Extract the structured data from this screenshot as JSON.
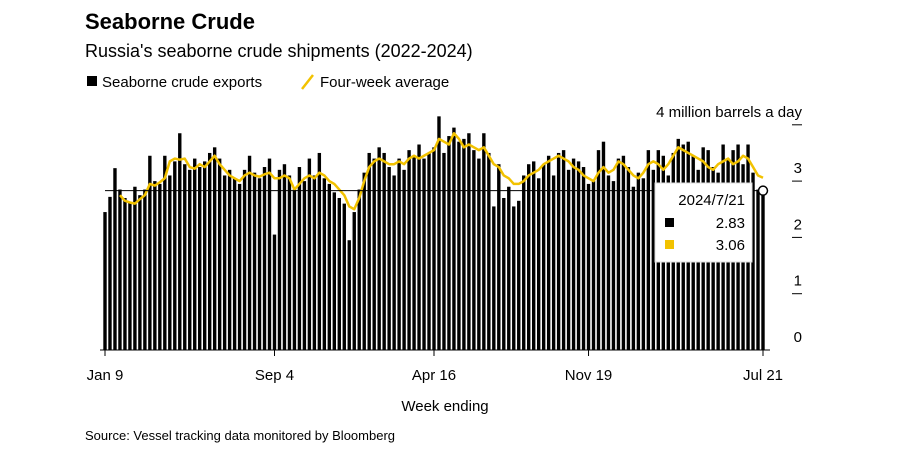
{
  "chart_data": {
    "type": "bar",
    "title": "Seaborne Crude",
    "subtitle": "Russia's seaborne crude shipments (2022-2024)",
    "x_label": "Week ending",
    "source": "Source: Vessel tracking data monitored by Bloomberg",
    "tooltip_title": "2024/7/21",
    "categories": [
      "Jan 9",
      null,
      null,
      null,
      null,
      null,
      null,
      null,
      null,
      null,
      null,
      null,
      null,
      null,
      null,
      null,
      null,
      null,
      null,
      null,
      null,
      null,
      null,
      null,
      null,
      null,
      null,
      null,
      null,
      null,
      null,
      null,
      null,
      null,
      "Sep 4",
      null,
      null,
      null,
      null,
      null,
      null,
      null,
      null,
      null,
      null,
      null,
      null,
      null,
      null,
      null,
      null,
      null,
      null,
      null,
      null,
      null,
      null,
      null,
      null,
      null,
      null,
      null,
      null,
      null,
      null,
      null,
      "Apr 16",
      null,
      null,
      null,
      null,
      null,
      null,
      null,
      null,
      null,
      null,
      null,
      null,
      null,
      null,
      null,
      null,
      null,
      null,
      null,
      null,
      null,
      null,
      null,
      null,
      null,
      null,
      null,
      null,
      null,
      null,
      "Nov 19",
      null,
      null,
      null,
      null,
      null,
      null,
      null,
      null,
      null,
      null,
      null,
      null,
      null,
      null,
      null,
      null,
      null,
      null,
      null,
      null,
      null,
      null,
      null,
      null,
      null,
      null,
      null,
      null,
      null,
      null,
      null,
      null,
      null,
      null,
      "Jul 21"
    ],
    "series": [
      {
        "name": "Seaborne crude exports",
        "type": "bar",
        "color": "#000000",
        "values": [
          2.45,
          2.72,
          3.23,
          2.85,
          2.7,
          2.62,
          2.9,
          2.75,
          2.85,
          3.45,
          3.0,
          2.95,
          3.45,
          3.1,
          3.35,
          3.85,
          3.3,
          3.2,
          3.4,
          3.25,
          3.35,
          3.5,
          3.6,
          3.4,
          3.1,
          3.2,
          3.05,
          2.95,
          3.2,
          3.45,
          3.15,
          3.05,
          3.25,
          3.4,
          2.05,
          3.2,
          3.3,
          3.1,
          2.85,
          3.25,
          3.0,
          3.4,
          3.1,
          3.5,
          3.05,
          2.95,
          2.8,
          2.7,
          2.6,
          1.95,
          2.45,
          2.85,
          3.15,
          3.5,
          3.4,
          3.6,
          3.5,
          3.25,
          3.1,
          3.4,
          3.2,
          3.55,
          3.45,
          3.65,
          3.4,
          3.5,
          3.6,
          4.15,
          3.5,
          3.8,
          3.95,
          3.7,
          3.75,
          3.85,
          3.55,
          3.4,
          3.85,
          3.5,
          2.55,
          3.3,
          2.7,
          2.9,
          2.55,
          2.65,
          3.1,
          3.3,
          3.35,
          3.05,
          3.3,
          3.45,
          3.1,
          3.5,
          3.55,
          3.2,
          3.4,
          3.35,
          3.25,
          2.95,
          3.0,
          3.55,
          3.7,
          3.1,
          3.0,
          3.4,
          3.45,
          3.25,
          2.9,
          3.15,
          3.05,
          3.55,
          3.2,
          3.55,
          3.45,
          3.1,
          3.5,
          3.75,
          3.65,
          3.7,
          3.45,
          3.2,
          3.6,
          3.55,
          3.25,
          3.15,
          3.65,
          3.4,
          3.55,
          3.65,
          3.3,
          3.65,
          3.15,
          2.85,
          2.83
        ]
      },
      {
        "name": "Four-week average",
        "type": "line",
        "color": "#f2c200",
        "values": [
          null,
          null,
          null,
          2.75,
          2.65,
          2.62,
          2.6,
          2.68,
          2.75,
          2.95,
          2.92,
          2.98,
          3.05,
          3.35,
          3.4,
          3.38,
          3.4,
          3.25,
          3.22,
          3.3,
          3.25,
          3.35,
          3.45,
          3.3,
          3.2,
          3.1,
          3.05,
          3.0,
          3.1,
          3.15,
          3.1,
          3.08,
          3.12,
          3.15,
          3.05,
          3.05,
          3.1,
          3.05,
          2.85,
          2.95,
          3.05,
          3.1,
          3.05,
          3.15,
          3.1,
          3.0,
          2.95,
          2.85,
          2.75,
          2.55,
          2.5,
          2.7,
          3.0,
          3.25,
          3.35,
          3.4,
          3.35,
          3.3,
          3.3,
          3.35,
          3.3,
          3.4,
          3.45,
          3.4,
          3.45,
          3.5,
          3.55,
          3.75,
          3.7,
          3.65,
          3.85,
          3.75,
          3.6,
          3.65,
          3.6,
          3.55,
          3.6,
          3.45,
          3.3,
          3.25,
          3.1,
          3.05,
          2.95,
          2.95,
          3.0,
          3.1,
          3.15,
          3.2,
          3.3,
          3.35,
          3.4,
          3.45,
          3.4,
          3.35,
          3.25,
          3.2,
          3.1,
          3.05,
          3.0,
          3.15,
          3.25,
          3.15,
          3.2,
          3.35,
          3.3,
          3.2,
          3.1,
          3.05,
          3.15,
          3.3,
          3.35,
          3.3,
          3.2,
          3.3,
          3.45,
          3.6,
          3.55,
          3.5,
          3.45,
          3.4,
          3.35,
          3.25,
          3.2,
          3.3,
          3.35,
          3.4,
          3.3,
          3.35,
          3.45,
          3.4,
          3.25,
          3.1,
          3.06
        ]
      }
    ],
    "ylim": [
      0,
      4
    ],
    "yticks": [
      0,
      1,
      2,
      3,
      {
        "value": 4,
        "label": "4 million barrels a day"
      }
    ],
    "grid": false
  }
}
